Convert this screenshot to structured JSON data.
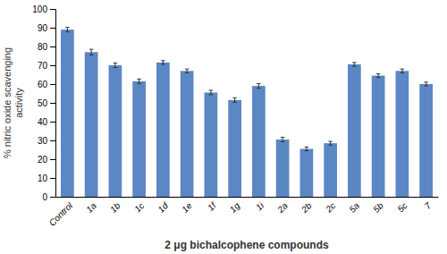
{
  "chart_data": {
    "type": "bar",
    "categories": [
      "Control",
      "1a",
      "1b",
      "1c",
      "1d",
      "1e",
      "1f",
      "1g",
      "1i",
      "2a",
      "2b",
      "2c",
      "5a",
      "5b",
      "5c",
      "7"
    ],
    "values": [
      89.0,
      77.0,
      70.0,
      61.5,
      71.5,
      67.0,
      55.5,
      51.5,
      59.0,
      30.5,
      25.5,
      28.5,
      70.5,
      64.5,
      67.0,
      60.0
    ],
    "errors": [
      1.2,
      1.5,
      1.2,
      1.2,
      1.0,
      1.0,
      1.2,
      1.2,
      1.2,
      1.2,
      1.0,
      1.0,
      1.0,
      1.0,
      1.0,
      1.0
    ],
    "color": "#5B87C5",
    "ylabel": "% nitric oxide scavenging\nactivity",
    "xlabel": "2 μg bichalcophene compounds",
    "ylim": [
      0,
      100
    ],
    "yticks": [
      0,
      10,
      20,
      30,
      40,
      50,
      60,
      70,
      80,
      90,
      100
    ],
    "grid": false
  }
}
